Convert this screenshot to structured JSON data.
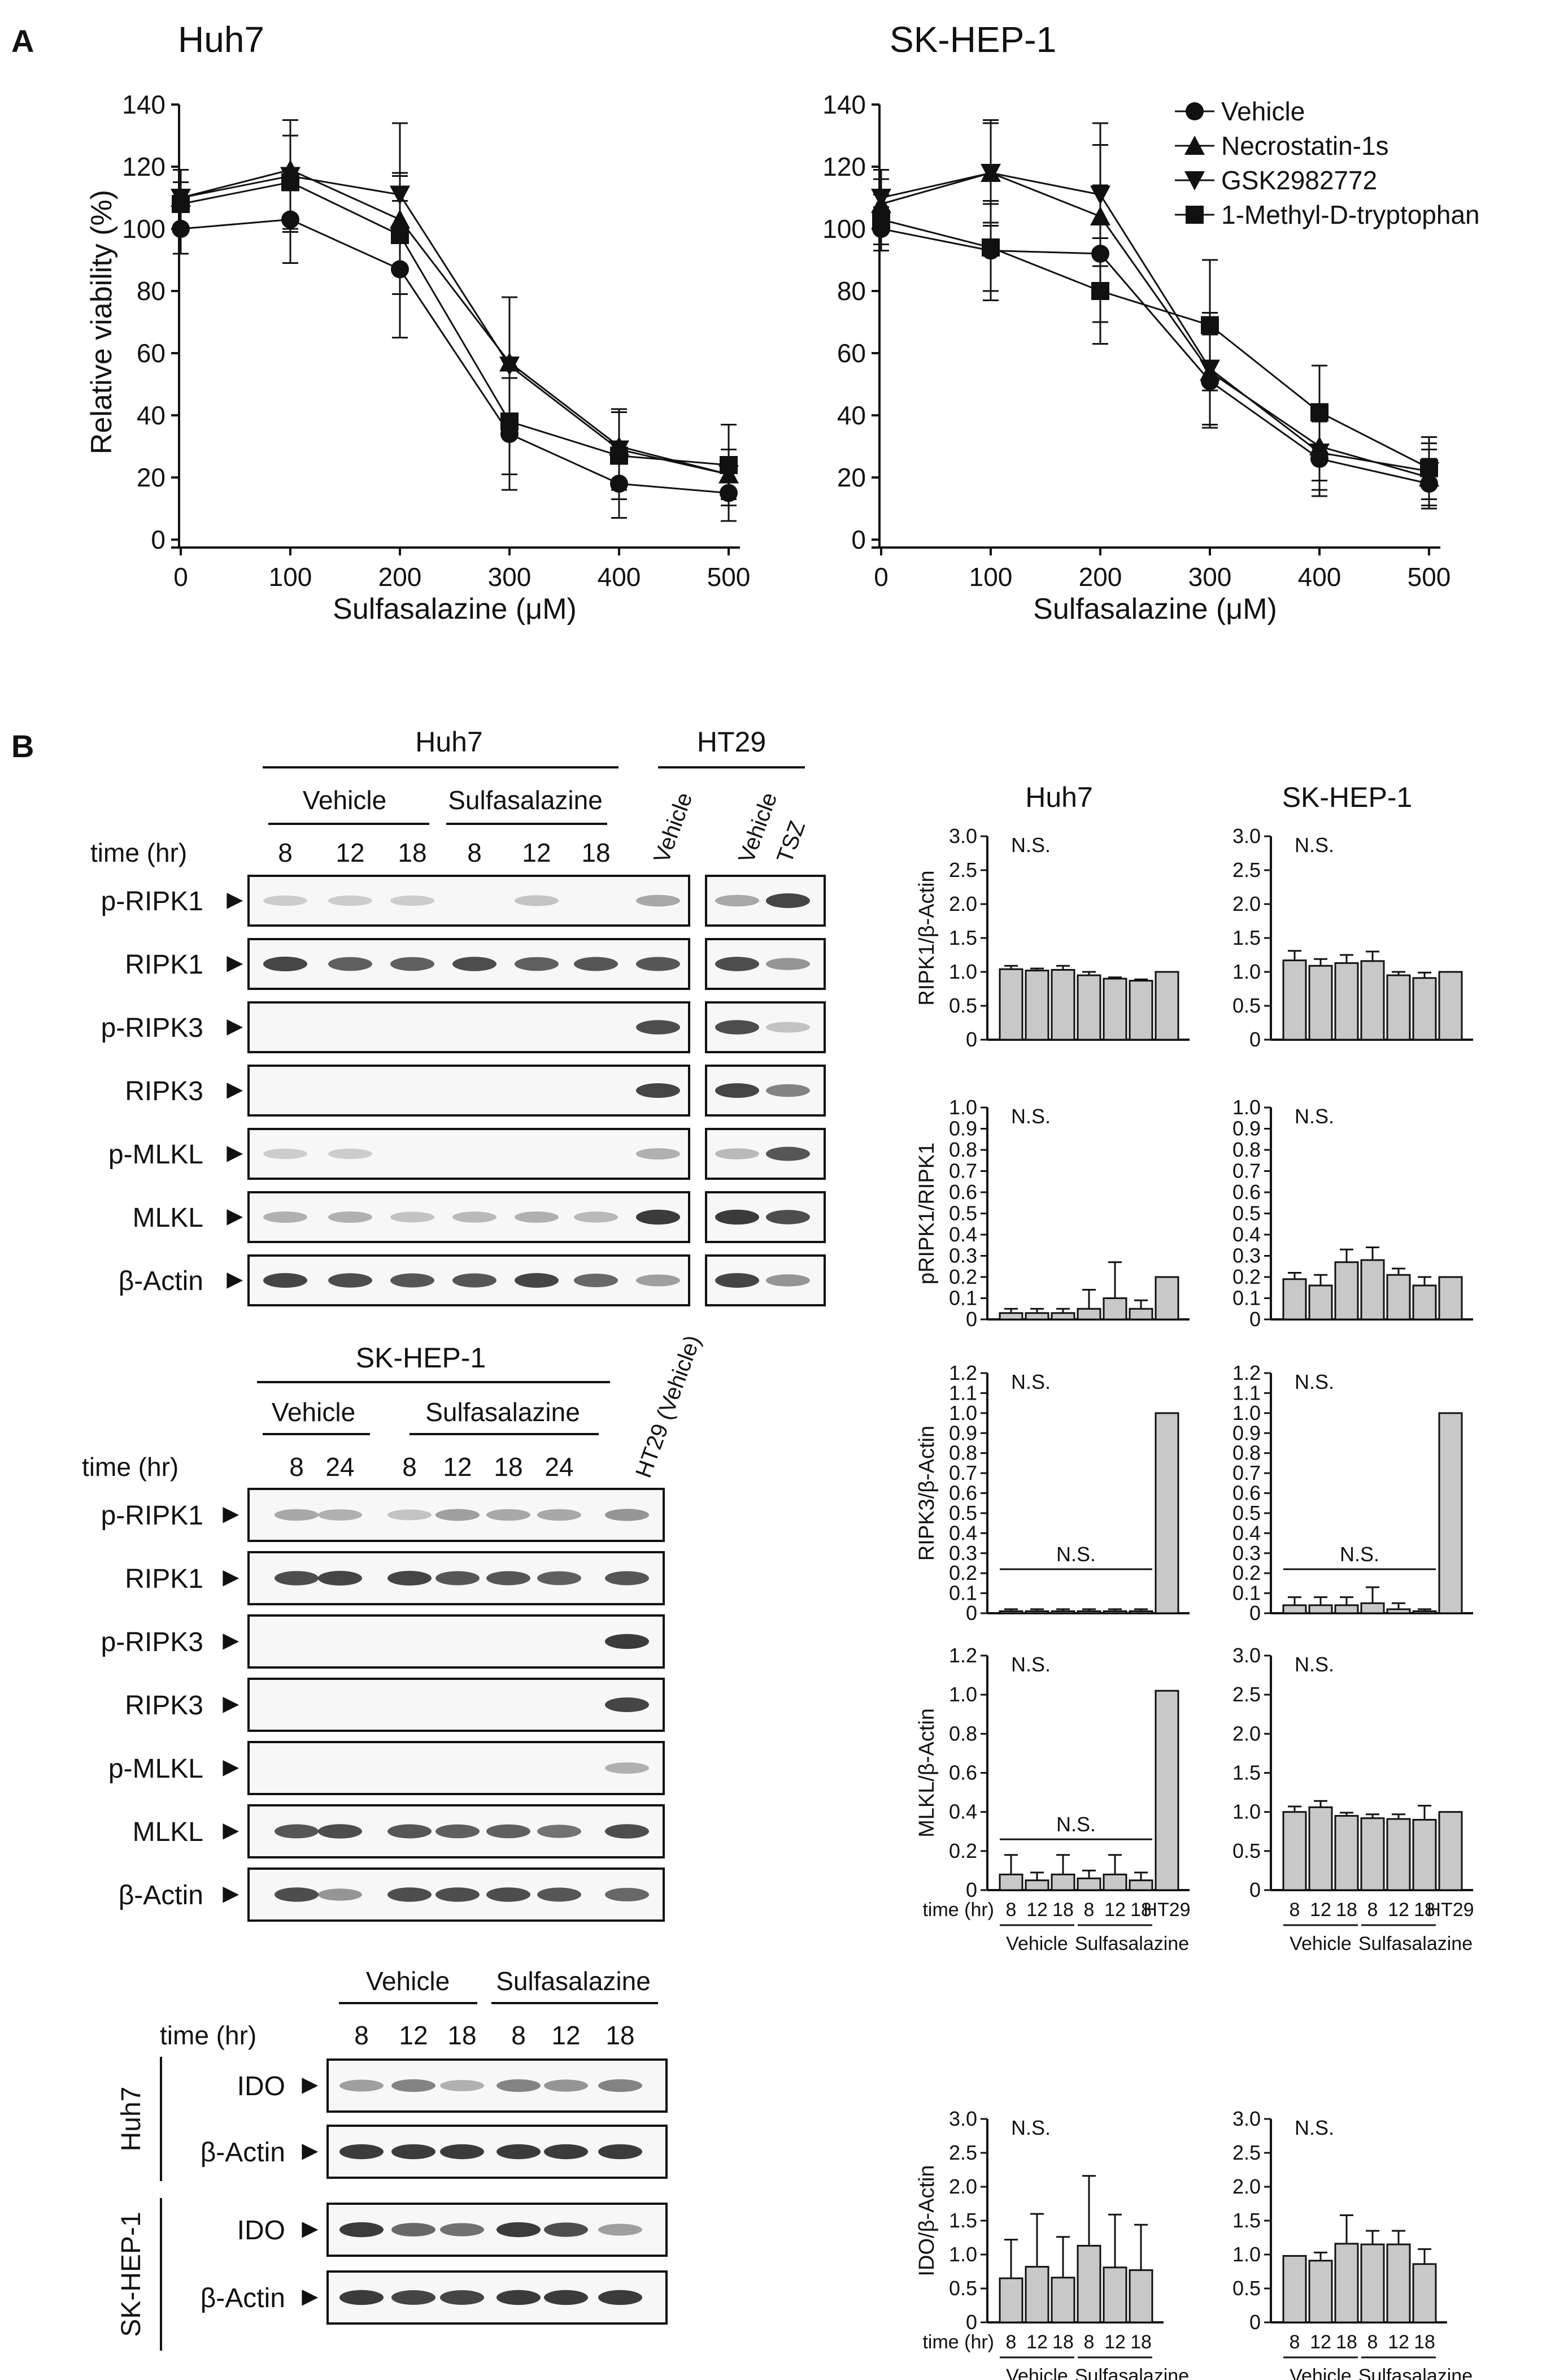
{
  "panel_a": {
    "label": "A",
    "x_ticks": [
      "0",
      "100",
      "200",
      "300",
      "400",
      "500"
    ],
    "y_ticks": [
      "0",
      "20",
      "40",
      "60",
      "80",
      "100",
      "120",
      "140"
    ],
    "legend": [
      "Vehicle",
      "Necrostatin-1s",
      "GSK2982772",
      "1-Methyl-D-tryptophan"
    ]
  },
  "chart_data": [
    {
      "type": "line",
      "title": "Huh7",
      "xlabel": "Sulfasalazine (μM)",
      "ylabel": "Relative viability (%)",
      "xlim": [
        0,
        500
      ],
      "ylim": [
        0,
        140
      ],
      "x": [
        0,
        100,
        200,
        300,
        400,
        500
      ],
      "series": [
        {
          "name": "Vehicle",
          "marker": "circle",
          "values": [
            100,
            103,
            87,
            34,
            18,
            15
          ],
          "errors": [
            8,
            14,
            22,
            18,
            11,
            9
          ]
        },
        {
          "name": "Necrostatin-1s",
          "marker": "triangle-up",
          "values": [
            110,
            119,
            103,
            57,
            30,
            21
          ],
          "errors": [
            9,
            16,
            15,
            21,
            12,
            8
          ]
        },
        {
          "name": "GSK2982772",
          "marker": "triangle-down",
          "values": [
            110,
            117,
            111,
            56,
            29,
            21
          ],
          "errors": [
            9,
            18,
            23,
            22,
            13,
            8
          ]
        },
        {
          "name": "1-Methyl-D-tryptophan",
          "marker": "square",
          "values": [
            108,
            115,
            98,
            38,
            27,
            24
          ],
          "errors": [
            7,
            15,
            19,
            17,
            14,
            13
          ]
        }
      ]
    },
    {
      "type": "line",
      "title": "SK-HEP-1",
      "xlabel": "Sulfasalazine (μM)",
      "ylabel": "",
      "xlim": [
        0,
        500
      ],
      "ylim": [
        0,
        140
      ],
      "x": [
        0,
        100,
        200,
        300,
        400,
        500
      ],
      "series": [
        {
          "name": "Vehicle",
          "marker": "circle",
          "values": [
            100,
            93,
            92,
            51,
            26,
            18
          ],
          "errors": [
            7,
            16,
            22,
            15,
            12,
            8
          ]
        },
        {
          "name": "Necrostatin-1s",
          "marker": "triangle-up",
          "values": [
            108,
            118,
            104,
            54,
            30,
            20
          ],
          "errors": [
            8,
            16,
            23,
            17,
            11,
            9
          ]
        },
        {
          "name": "GSK2982772",
          "marker": "triangle-down",
          "values": [
            110,
            118,
            111,
            55,
            28,
            22
          ],
          "errors": [
            9,
            17,
            23,
            18,
            12,
            9
          ]
        },
        {
          "name": "1-Methyl-D-tryptophan",
          "marker": "square",
          "values": [
            103,
            94,
            80,
            69,
            41,
            23
          ],
          "errors": [
            8,
            14,
            17,
            21,
            15,
            10
          ]
        }
      ]
    },
    {
      "type": "bar",
      "title": "Huh7",
      "ylabel": "RIPK1/β-Actin",
      "annotation": "N.S.",
      "ylim": [
        0,
        3.0
      ],
      "y_ticks": [
        "0",
        "0.5",
        "1.0",
        "1.5",
        "2.0",
        "2.5",
        "3.0"
      ],
      "values": [
        1.04,
        1.02,
        1.03,
        0.95,
        0.9,
        0.87,
        1.0
      ],
      "errors": [
        0.05,
        0.03,
        0.06,
        0.05,
        0.02,
        0.02,
        0
      ]
    },
    {
      "type": "bar",
      "title": "SK-HEP-1",
      "ylabel": "",
      "annotation": "N.S.",
      "ylim": [
        0,
        3.0
      ],
      "y_ticks": [
        "0",
        "0.5",
        "1.0",
        "1.5",
        "2.0",
        "2.5",
        "3.0"
      ],
      "values": [
        1.17,
        1.09,
        1.13,
        1.16,
        0.95,
        0.91,
        1.0
      ],
      "errors": [
        0.14,
        0.1,
        0.12,
        0.14,
        0.05,
        0.08,
        0
      ]
    },
    {
      "type": "bar",
      "title": "",
      "ylabel": "pRIPK1/RIPK1",
      "annotation": "N.S.",
      "ylim": [
        0,
        1.0
      ],
      "y_ticks": [
        "0",
        "0.1",
        "0.2",
        "0.3",
        "0.4",
        "0.5",
        "0.6",
        "0.7",
        "0.8",
        "0.9",
        "1.0"
      ],
      "values": [
        0.03,
        0.03,
        0.03,
        0.05,
        0.1,
        0.05,
        0.2
      ],
      "errors": [
        0.02,
        0.02,
        0.02,
        0.09,
        0.17,
        0.04,
        0
      ]
    },
    {
      "type": "bar",
      "title": "",
      "ylabel": "",
      "annotation": "N.S.",
      "ylim": [
        0,
        1.0
      ],
      "y_ticks": [
        "0",
        "0.1",
        "0.2",
        "0.3",
        "0.4",
        "0.5",
        "0.6",
        "0.7",
        "0.8",
        "0.9",
        "1.0"
      ],
      "values": [
        0.19,
        0.16,
        0.27,
        0.28,
        0.21,
        0.16,
        0.2
      ],
      "errors": [
        0.03,
        0.05,
        0.06,
        0.06,
        0.03,
        0.04,
        0
      ]
    },
    {
      "type": "bar",
      "title": "",
      "ylabel": "RIPK3/β-Actin",
      "annotation": "N.S.",
      "ylim": [
        0,
        1.2
      ],
      "y_ticks": [
        "0",
        "0.1",
        "0.2",
        "0.3",
        "0.4",
        "0.5",
        "0.6",
        "0.7",
        "0.8",
        "0.9",
        "1.0",
        "1.1",
        "1.2"
      ],
      "values": [
        0.01,
        0.01,
        0.01,
        0.01,
        0.01,
        0.01,
        1.0
      ],
      "errors": [
        0.01,
        0.01,
        0.01,
        0.01,
        0.01,
        0.01,
        0
      ]
    },
    {
      "type": "bar",
      "title": "",
      "ylabel": "",
      "annotation": "N.S.",
      "ylim": [
        0,
        1.2
      ],
      "y_ticks": [
        "0",
        "0.1",
        "0.2",
        "0.3",
        "0.4",
        "0.5",
        "0.6",
        "0.7",
        "0.8",
        "0.9",
        "1.0",
        "1.1",
        "1.2"
      ],
      "values": [
        0.04,
        0.04,
        0.04,
        0.05,
        0.02,
        0.01,
        1.0
      ],
      "errors": [
        0.04,
        0.04,
        0.04,
        0.08,
        0.03,
        0.01,
        0
      ]
    },
    {
      "type": "bar",
      "title": "",
      "ylabel": "MLKL/β-Actin",
      "annotation": "N.S.",
      "ylim": [
        0,
        1.2
      ],
      "y_ticks": [
        "0",
        "0.2",
        "0.4",
        "0.6",
        "0.8",
        "1.0",
        "1.2"
      ],
      "values": [
        0.08,
        0.05,
        0.08,
        0.06,
        0.08,
        0.05,
        1.02
      ],
      "errors": [
        0.1,
        0.04,
        0.1,
        0.04,
        0.1,
        0.04,
        0
      ],
      "x_ticks": [
        "8",
        "12",
        "18",
        "8",
        "12",
        "18",
        "HT29"
      ],
      "xlabel": "time (hr)",
      "groups": [
        "Vehicle",
        "Sulfasalazine"
      ]
    },
    {
      "type": "bar",
      "title": "",
      "ylabel": "",
      "annotation": "N.S.",
      "ylim": [
        0,
        3.0
      ],
      "y_ticks": [
        "0",
        "0.5",
        "1.0",
        "1.5",
        "2.0",
        "2.5",
        "3.0"
      ],
      "values": [
        1.0,
        1.06,
        0.95,
        0.92,
        0.91,
        0.9,
        1.0
      ],
      "errors": [
        0.07,
        0.08,
        0.04,
        0.05,
        0.06,
        0.18,
        0
      ],
      "x_ticks": [
        "8",
        "12",
        "18",
        "8",
        "12",
        "18",
        "HT29"
      ],
      "groups": [
        "Vehicle",
        "Sulfasalazine"
      ]
    },
    {
      "type": "bar",
      "title": "",
      "ylabel": "IDO/β-Actin",
      "annotation": "N.S.",
      "ylim": [
        0,
        3.0
      ],
      "y_ticks": [
        "0",
        "0.5",
        "1.0",
        "1.5",
        "2.0",
        "2.5",
        "3.0"
      ],
      "values": [
        0.65,
        0.82,
        0.66,
        1.13,
        0.81,
        0.77
      ],
      "errors": [
        0.57,
        0.78,
        0.6,
        1.03,
        0.78,
        0.67
      ],
      "x_ticks": [
        "8",
        "12",
        "18",
        "8",
        "12",
        "18"
      ],
      "xlabel": "time (hr)",
      "groups": [
        "Vehicle",
        "Sulfasalazine"
      ]
    },
    {
      "type": "bar",
      "title": "",
      "ylabel": "",
      "annotation": "N.S.",
      "ylim": [
        0,
        3.0
      ],
      "y_ticks": [
        "0",
        "0.5",
        "1.0",
        "1.5",
        "2.0",
        "2.5",
        "3.0"
      ],
      "values": [
        0.98,
        0.91,
        1.16,
        1.15,
        1.15,
        0.86
      ],
      "errors": [
        0,
        0.12,
        0.42,
        0.2,
        0.2,
        0.22
      ],
      "x_ticks": [
        "8",
        "12",
        "18",
        "8",
        "12",
        "18"
      ],
      "groups": [
        "Vehicle",
        "Sulfasalazine"
      ]
    }
  ],
  "panel_b": {
    "label": "B",
    "time_label": "time (hr)",
    "arrow": "►",
    "blot_huh7": {
      "cell_line": "Huh7",
      "control": "HT29",
      "vehicle": "Vehicle",
      "treatment": "Sulfasalazine",
      "times": [
        "8",
        "12",
        "18",
        "8",
        "12",
        "18"
      ],
      "lane_vehicle": "Vehicle",
      "ht29_lanes": [
        "Vehicle",
        "TSZ"
      ],
      "proteins": [
        "p-RIPK1",
        "RIPK1",
        "p-RIPK3",
        "RIPK3",
        "p-MLKL",
        "MLKL",
        "β-Actin"
      ]
    },
    "blot_skhep": {
      "cell_line": "SK-HEP-1",
      "vehicle": "Vehicle",
      "treatment": "Sulfasalazine",
      "times": [
        "8",
        "24",
        "8",
        "12",
        "18",
        "24"
      ],
      "control_lane": "HT29 (Vehicle)",
      "proteins": [
        "p-RIPK1",
        "RIPK1",
        "p-RIPK3",
        "RIPK3",
        "p-MLKL",
        "MLKL",
        "β-Actin"
      ]
    },
    "blot_ido": {
      "vehicle": "Vehicle",
      "treatment": "Sulfasalazine",
      "times": [
        "8",
        "12",
        "18",
        "8",
        "12",
        "18"
      ],
      "rows": [
        "Huh7",
        "SK-HEP-1"
      ],
      "proteins": [
        "IDO",
        "β-Actin"
      ]
    }
  }
}
